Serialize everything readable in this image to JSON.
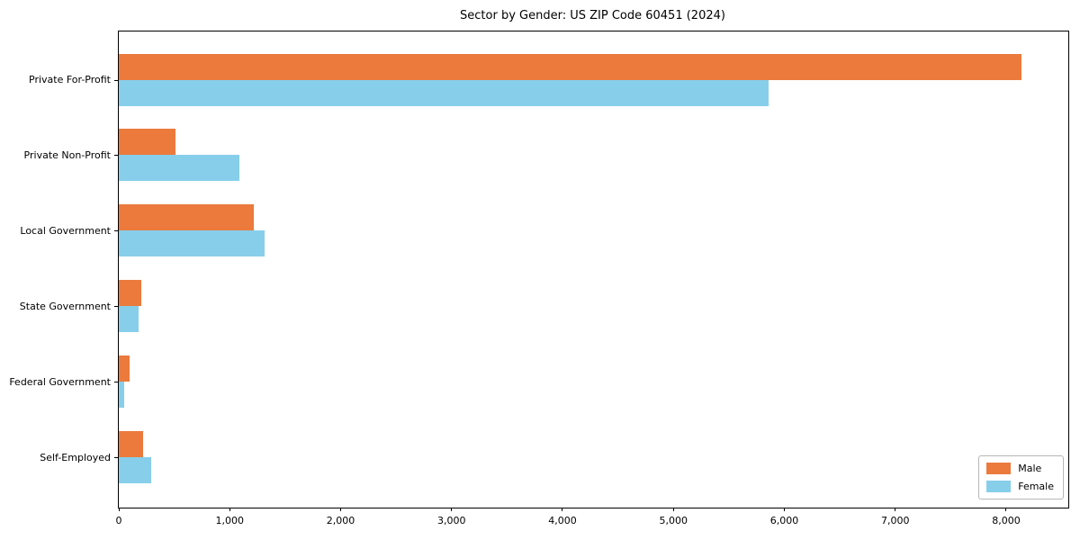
{
  "chart_data": {
    "type": "bar",
    "orientation": "horizontal",
    "title": "Sector by Gender: US ZIP Code 60451 (2024)",
    "categories": [
      "Private For-Profit",
      "Private Non-Profit",
      "Local Government",
      "State Government",
      "Federal Government",
      "Self-Employed"
    ],
    "series": [
      {
        "name": "Male",
        "color": "#EB7A3C",
        "values": [
          8140,
          515,
          1220,
          205,
          95,
          220
        ]
      },
      {
        "name": "Female",
        "color": "#87CEEB",
        "values": [
          5860,
          1090,
          1315,
          180,
          50,
          290
        ]
      }
    ],
    "xlim": [
      0,
      8560
    ],
    "x_ticks": [
      0,
      1000,
      2000,
      3000,
      4000,
      5000,
      6000,
      7000,
      8000
    ],
    "x_tick_labels": [
      "0",
      "1,000",
      "2,000",
      "3,000",
      "4,000",
      "5,000",
      "6,000",
      "7,000",
      "8,000"
    ],
    "legend_position": "lower right",
    "grid": false,
    "background_color": "#ffffff",
    "spine_color": "#000000"
  }
}
